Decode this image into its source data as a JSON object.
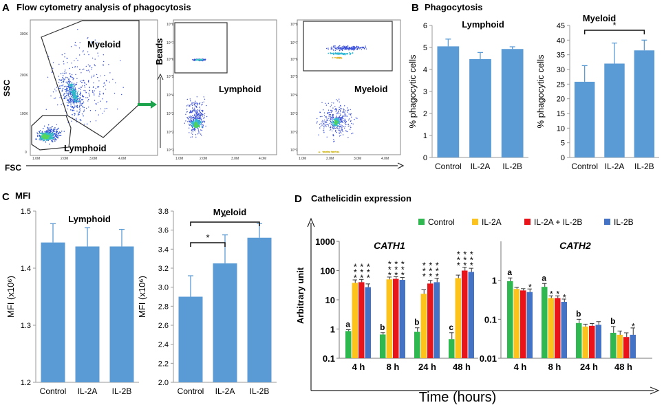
{
  "panels": {
    "A": {
      "letter": "A",
      "title": "Flow cytometry analysis of phagocytosis",
      "ssc_label": "SSC",
      "fsc_label": "FSC",
      "beads_label": "Beads",
      "gate_myeloid": "Myeloid",
      "gate_lymphoid": "Lymphoid",
      "plot2_label": "Lymphoid",
      "plot3_label": "Myeloid",
      "y_ticks_scatter": [
        "300K",
        "200K",
        "100K",
        "0"
      ],
      "x_ticks_fsc": [
        "1.0M",
        "2.0M",
        "3.0M",
        "4.0M"
      ],
      "y_ticks_log": [
        "10^8",
        "10^7",
        "10^6",
        "10^5",
        "10^4",
        "10^3",
        "10^2",
        "10^1"
      ]
    },
    "B": {
      "letter": "B",
      "title": "Phagocytosis"
    },
    "C": {
      "letter": "C",
      "title": "MFI"
    },
    "D": {
      "letter": "D",
      "title": "Cathelicidin expression",
      "ylabel": "Arbitrary unit",
      "xlabel": "Time (hours)",
      "legend": [
        {
          "label": "Control",
          "color": "#2eb84f"
        },
        {
          "label": "IL-2A",
          "color": "#fcc31d"
        },
        {
          "label": "IL-2A + IL-2B",
          "color": "#e8141a"
        },
        {
          "label": "IL-2B",
          "color": "#4472c4"
        }
      ]
    }
  },
  "chart_data": [
    {
      "id": "B-lymphoid",
      "type": "bar",
      "title": "Lymphoid",
      "ylabel": "% phagocytic cells",
      "categories": [
        "Control",
        "IL-2A",
        "IL-2B"
      ],
      "values": [
        5.05,
        4.47,
        4.93
      ],
      "errors": [
        0.33,
        0.3,
        0.1
      ],
      "ylim": [
        0,
        6
      ],
      "yticks": [
        "0",
        "1",
        "2",
        "3",
        "4",
        "5",
        "6"
      ],
      "color": "#5b9bd5"
    },
    {
      "id": "B-myeloid",
      "type": "bar",
      "title": "Myeloid",
      "ylabel": "% phagocytic cells",
      "categories": [
        "Control",
        "IL-2A",
        "IL-2B"
      ],
      "values": [
        25.8,
        32.0,
        36.5
      ],
      "errors": [
        5.5,
        7.0,
        3.5
      ],
      "ylim": [
        0,
        45
      ],
      "yticks": [
        "0",
        "5",
        "10",
        "15",
        "20",
        "25",
        "30",
        "35",
        "40",
        "45"
      ],
      "color": "#5b9bd5",
      "significance": [
        {
          "from": 0,
          "to": 2,
          "label": "*"
        }
      ]
    },
    {
      "id": "C-lymphoid",
      "type": "bar",
      "title": "Lymphoid",
      "ylabel": "MFI (x10⁶)",
      "categories": [
        "Control",
        "IL-2A",
        "IL-2B"
      ],
      "values": [
        1.445,
        1.438,
        1.438
      ],
      "errors": [
        0.033,
        0.033,
        0.03
      ],
      "ylim": [
        1.2,
        1.5
      ],
      "yticks": [
        "1.2",
        "1.3",
        "1.4",
        "1.5"
      ],
      "color": "#5b9bd5"
    },
    {
      "id": "C-myeloid",
      "type": "bar",
      "title": "Myeloid",
      "ylabel": "MFI (x10⁶)",
      "categories": [
        "Control",
        "IL-2A",
        "IL-2B"
      ],
      "values": [
        2.9,
        3.25,
        3.52
      ],
      "errors": [
        0.22,
        0.3,
        0.15
      ],
      "ylim": [
        2.0,
        3.8
      ],
      "yticks": [
        "2.0",
        "2.2",
        "2.4",
        "2.6",
        "2.8",
        "3.0",
        "3.2",
        "3.4",
        "3.6",
        "3.8"
      ],
      "color": "#5b9bd5",
      "significance": [
        {
          "from": 0,
          "to": 1,
          "label": "*"
        },
        {
          "from": 0,
          "to": 2,
          "label": "*"
        }
      ]
    },
    {
      "id": "D-cath1",
      "type": "bar",
      "scale": "log",
      "title": "CATH1",
      "ylim": [
        0.1,
        1000
      ],
      "yticks": [
        "0.1",
        "1",
        "10",
        "100",
        "1000"
      ],
      "categories": [
        "4 h",
        "8 h",
        "24 h",
        "48 h"
      ],
      "series": [
        {
          "name": "Control",
          "values": [
            0.85,
            0.65,
            0.8,
            0.45
          ],
          "errors": [
            0.1,
            0.1,
            0.3,
            0.3
          ]
        },
        {
          "name": "IL-2A",
          "values": [
            38,
            50,
            16,
            55
          ],
          "errors": [
            10,
            10,
            6,
            15
          ]
        },
        {
          "name": "IL-2A + IL-2B",
          "values": [
            40,
            52,
            36,
            100
          ],
          "errors": [
            10,
            10,
            10,
            30
          ]
        },
        {
          "name": "IL-2B",
          "values": [
            27,
            48,
            40,
            90
          ],
          "errors": [
            8,
            10,
            15,
            30
          ]
        }
      ],
      "group_letters": [
        "a",
        "b",
        "b",
        "c"
      ],
      "stars": [
        [
          "*",
          "*",
          "*"
        ],
        [
          "*",
          "*",
          "*"
        ],
        [
          "*",
          "*",
          "*"
        ],
        [
          "*",
          "*",
          "*"
        ]
      ]
    },
    {
      "id": "D-cath2",
      "type": "bar",
      "scale": "log",
      "title": "CATH2",
      "ylim": [
        0.01,
        10
      ],
      "yticks": [
        "0.01",
        "0.1",
        "1"
      ],
      "categories": [
        "4 h",
        "8 h",
        "24 h",
        "48 h"
      ],
      "series": [
        {
          "name": "Control",
          "values": [
            0.95,
            0.68,
            0.08,
            0.045
          ],
          "errors": [
            0.2,
            0.15,
            0.02,
            0.02
          ]
        },
        {
          "name": "IL-2A",
          "values": [
            0.6,
            0.35,
            0.065,
            0.04
          ],
          "errors": [
            0.06,
            0.05,
            0.01,
            0.01
          ]
        },
        {
          "name": "IL-2A + IL-2B",
          "values": [
            0.55,
            0.35,
            0.068,
            0.035
          ],
          "errors": [
            0.06,
            0.05,
            0.01,
            0.01
          ]
        },
        {
          "name": "IL-2B",
          "values": [
            0.5,
            0.28,
            0.072,
            0.04
          ],
          "errors": [
            0.1,
            0.05,
            0.015,
            0.02
          ]
        }
      ],
      "group_letters": [
        "a",
        "a",
        "b",
        "b"
      ],
      "stars": [
        [
          null,
          null,
          "*"
        ],
        [
          "*",
          "*",
          "*"
        ],
        [
          null,
          null,
          null
        ],
        [
          null,
          null,
          "*"
        ]
      ]
    }
  ]
}
